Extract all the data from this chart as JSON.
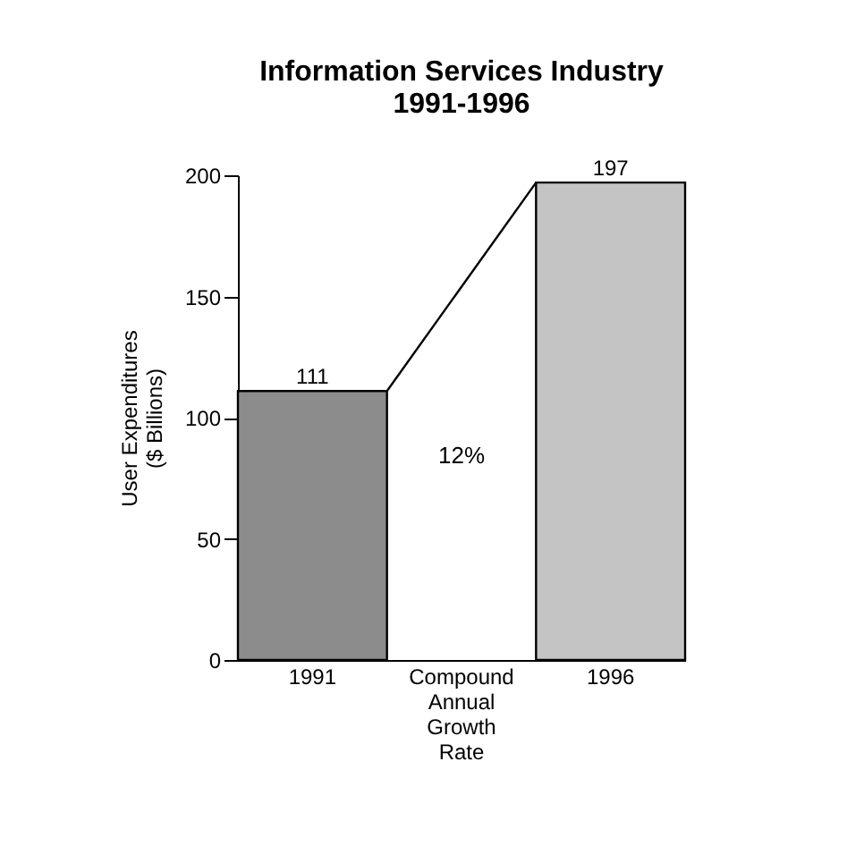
{
  "chart_data": {
    "type": "bar",
    "title": "Information Services Industry",
    "subtitle": "1991-1996",
    "ylabel": "User Expenditures ($ Billions)",
    "categories": [
      "1991",
      "Compound Annual Growth Rate",
      "1996"
    ],
    "series": [
      {
        "values": [
          111,
          null,
          197
        ],
        "colors": [
          "#8c8c8c",
          null,
          "#c4c4c4"
        ]
      }
    ],
    "ylim": [
      0,
      200
    ],
    "yticks": [
      0,
      50,
      100,
      150,
      200
    ],
    "data_labels": true,
    "annotations": [
      "12%"
    ]
  }
}
